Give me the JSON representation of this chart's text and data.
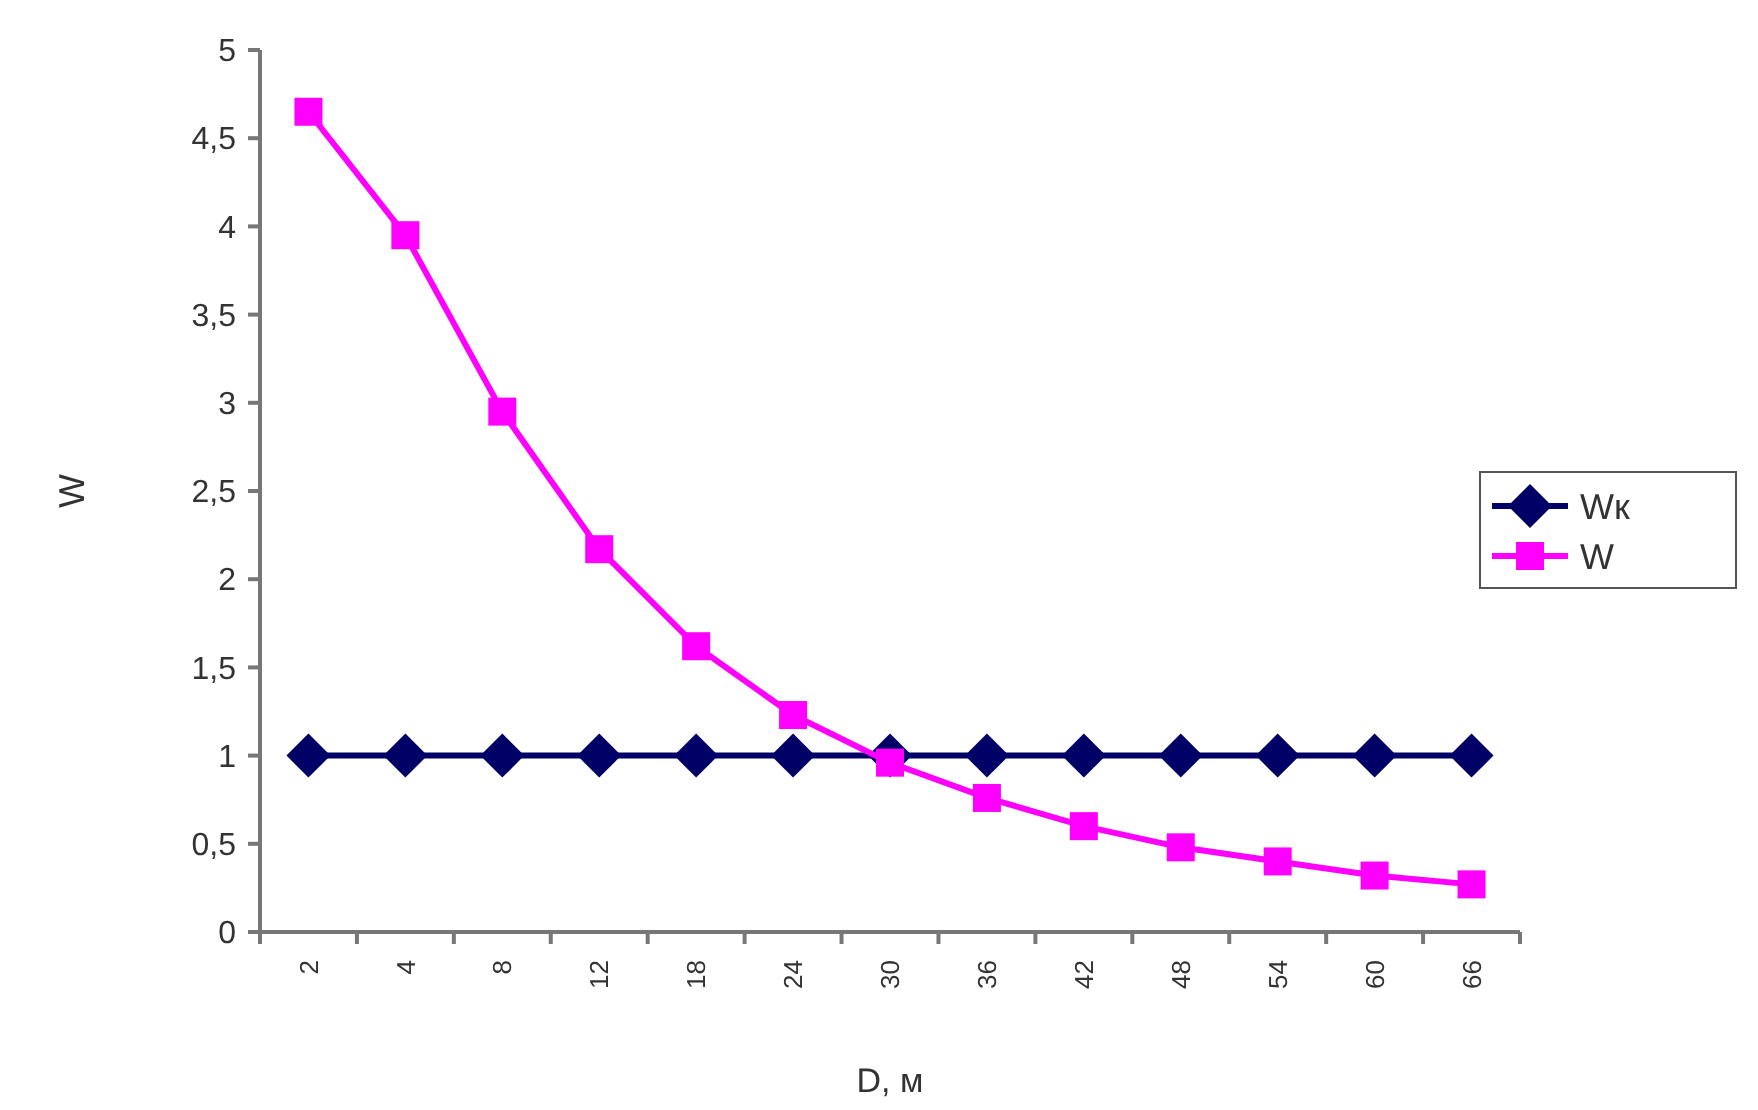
{
  "chart_data": {
    "type": "line",
    "xlabel": "D, м",
    "ylabel": "W",
    "categories": [
      "2",
      "4",
      "8",
      "12",
      "18",
      "24",
      "30",
      "36",
      "42",
      "48",
      "54",
      "60",
      "66"
    ],
    "series": [
      {
        "name": "Wк",
        "color": "#000066",
        "marker": "diamond",
        "values": [
          1,
          1,
          1,
          1,
          1,
          1,
          1,
          1,
          1,
          1,
          1,
          1,
          1
        ]
      },
      {
        "name": "W",
        "color": "#ff00ff",
        "marker": "square",
        "values": [
          4.65,
          3.95,
          2.95,
          2.17,
          1.62,
          1.23,
          0.96,
          0.76,
          0.6,
          0.48,
          0.4,
          0.32,
          0.27
        ]
      }
    ],
    "ylim": [
      0,
      5
    ],
    "yticks": [
      0,
      {
        "value": 0.5,
        "label": "0,5"
      },
      1,
      {
        "value": 1.5,
        "label": "1,5"
      },
      2,
      {
        "value": 2.5,
        "label": "2,5"
      },
      3,
      {
        "value": 3.5,
        "label": "3,5"
      },
      4,
      {
        "value": 4.5,
        "label": "4,5"
      },
      5
    ],
    "grid": false,
    "legend": "right",
    "line_style": "solid"
  }
}
